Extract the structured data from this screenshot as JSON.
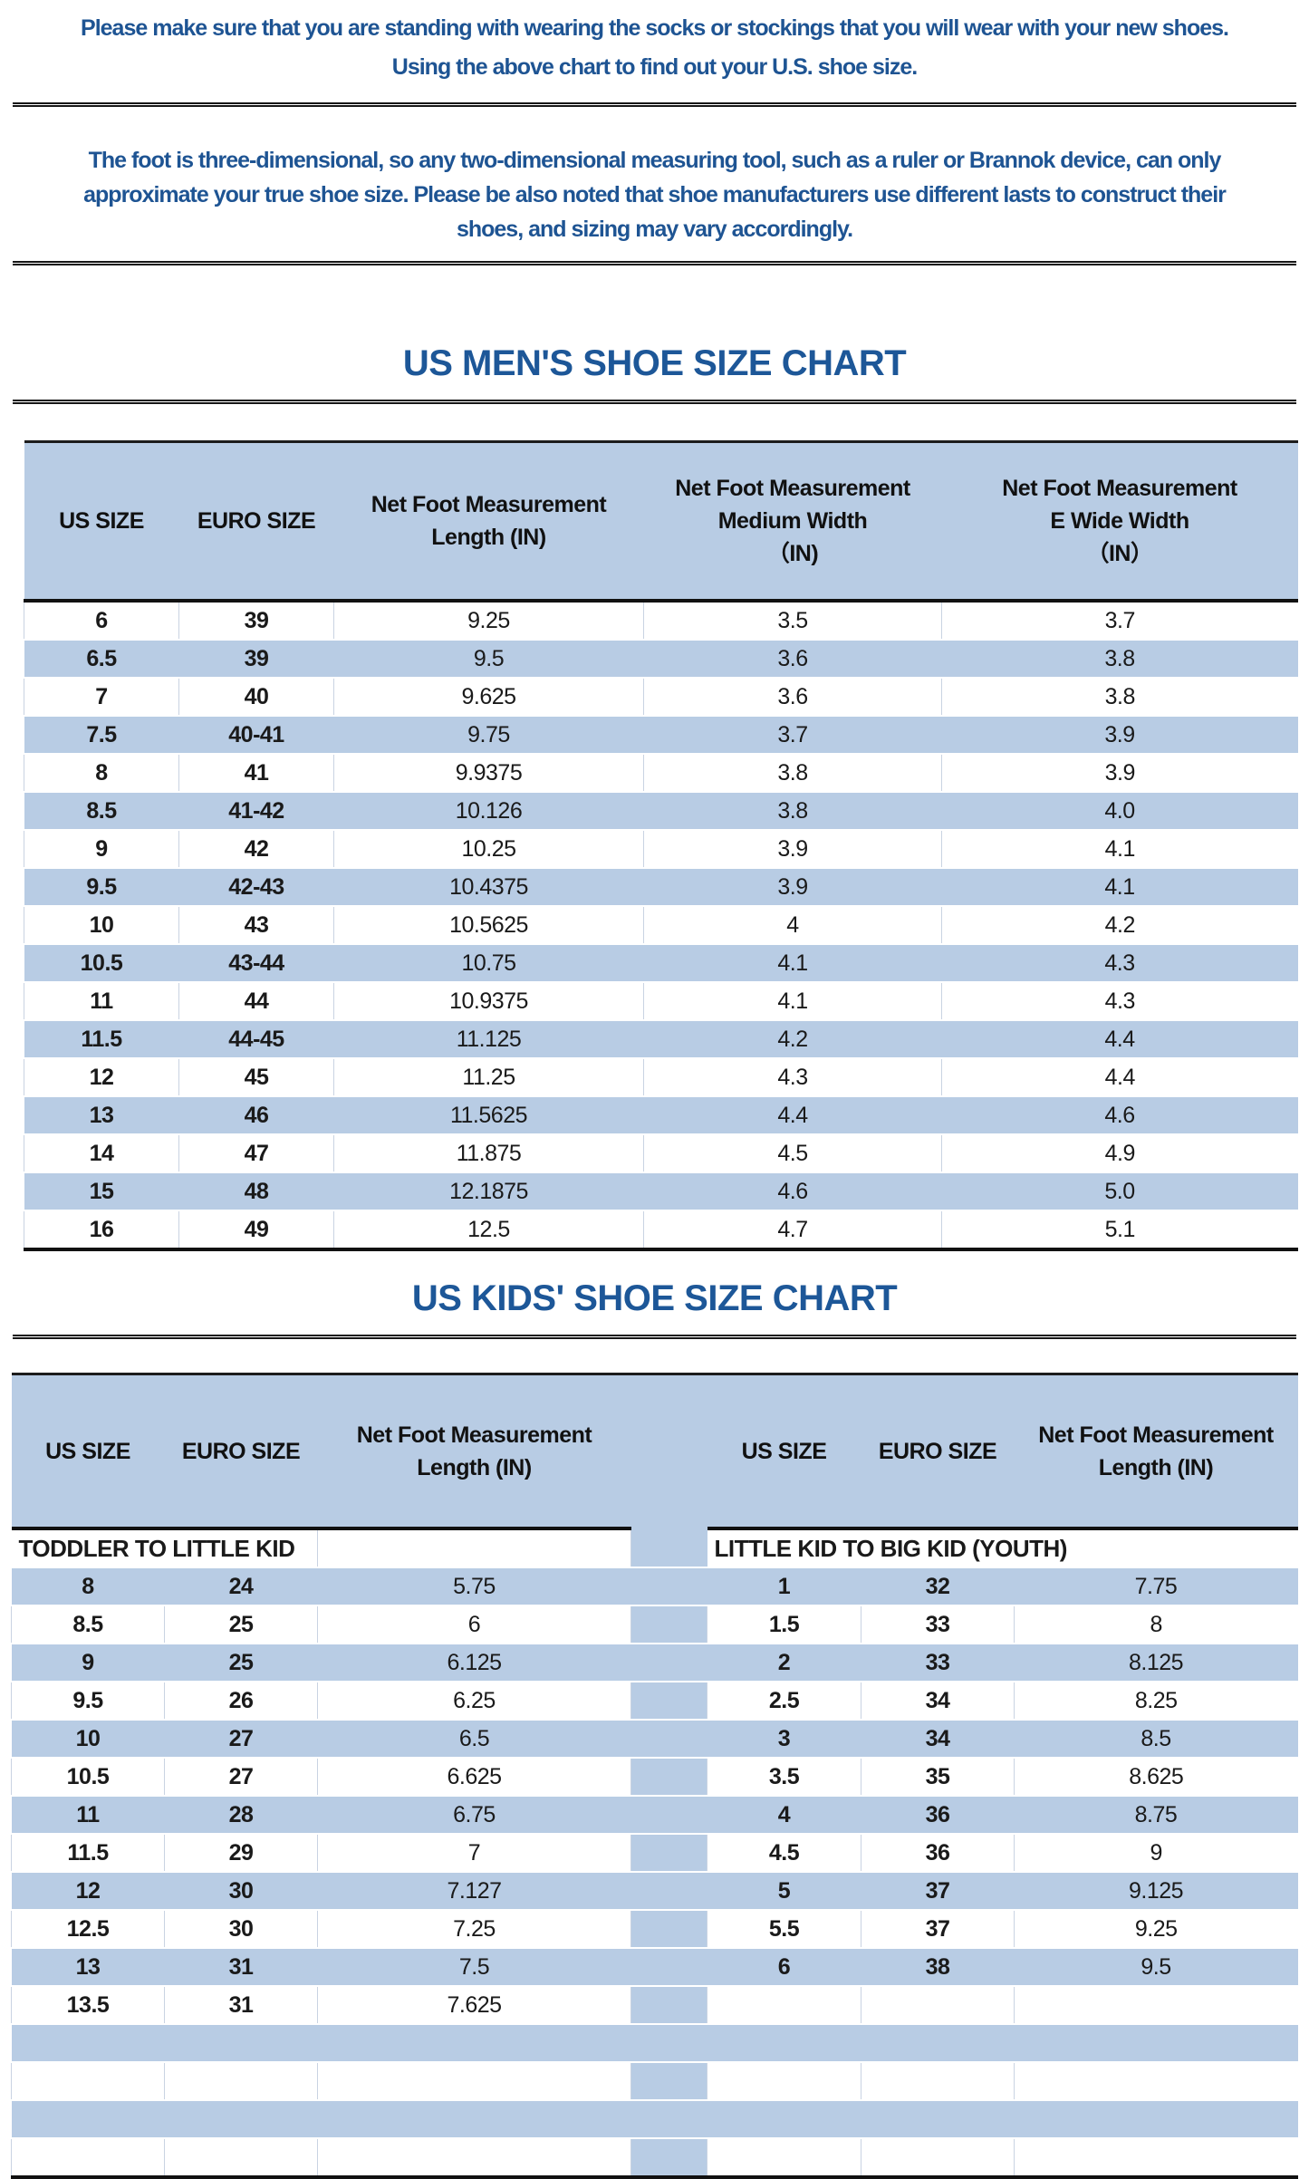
{
  "page": {
    "accent_blue": "#b8cce4",
    "text_blue": "#1e5493",
    "line_black": "#161616"
  },
  "intro": {
    "lines": [
      "Please make sure that you are standing with wearing the socks or stockings that you will wear with your new shoes.",
      "Using the above chart to find out your U.S. shoe size."
    ]
  },
  "note": {
    "lines": [
      "The foot is three-dimensional, so any two-dimensional measuring tool, such as a ruler or Brannok device, can only",
      "approximate your true shoe size. Please be also noted that shoe manufacturers use different lasts to construct their",
      "shoes, and sizing may vary accordingly."
    ]
  },
  "mens": {
    "title": "US MEN'S SHOE SIZE CHART",
    "headers": {
      "us": "US SIZE",
      "euro": "EURO SIZE",
      "length": [
        "Net Foot Measurement",
        "Length (IN)"
      ],
      "medium": [
        "Net Foot Measurement",
        "Medium Width",
        "（IN)"
      ],
      "ewide": [
        "Net Foot Measurement",
        "E Wide Width",
        "（IN）"
      ]
    },
    "rows": [
      [
        "6",
        "39",
        "9.25",
        "3.5",
        "3.7"
      ],
      [
        "6.5",
        "39",
        "9.5",
        "3.6",
        "3.8"
      ],
      [
        "7",
        "40",
        "9.625",
        "3.6",
        "3.8"
      ],
      [
        "7.5",
        "40-41",
        "9.75",
        "3.7",
        "3.9"
      ],
      [
        "8",
        "41",
        "9.9375",
        "3.8",
        "3.9"
      ],
      [
        "8.5",
        "41-42",
        "10.126",
        "3.8",
        "4.0"
      ],
      [
        "9",
        "42",
        "10.25",
        "3.9",
        "4.1"
      ],
      [
        "9.5",
        "42-43",
        "10.4375",
        "3.9",
        "4.1"
      ],
      [
        "10",
        "43",
        "10.5625",
        "4",
        "4.2"
      ],
      [
        "10.5",
        "43-44",
        "10.75",
        "4.1",
        "4.3"
      ],
      [
        "11",
        "44",
        "10.9375",
        "4.1",
        "4.3"
      ],
      [
        "11.5",
        "44-45",
        "11.125",
        "4.2",
        "4.4"
      ],
      [
        "12",
        "45",
        "11.25",
        "4.3",
        "4.4"
      ],
      [
        "13",
        "46",
        "11.5625",
        "4.4",
        "4.6"
      ],
      [
        "14",
        "47",
        "11.875",
        "4.5",
        "4.9"
      ],
      [
        "15",
        "48",
        "12.1875",
        "4.6",
        "5.0"
      ],
      [
        "16",
        "49",
        "12.5",
        "4.7",
        "5.1"
      ]
    ]
  },
  "kids": {
    "title": "US KIDS' SHOE SIZE CHART",
    "headers": {
      "us": "US SIZE",
      "euro": "EURO SIZE",
      "length": [
        "Net Foot Measurement",
        "Length (IN)"
      ]
    },
    "left_group_label": "TODDLER TO LITTLE KID",
    "right_group_label": "LITTLE KID TO BIG KID (YOUTH)",
    "rows": [
      [
        "8",
        "24",
        "5.75",
        "",
        "1",
        "32",
        "7.75"
      ],
      [
        "8.5",
        "25",
        "6",
        "",
        "1.5",
        "33",
        "8"
      ],
      [
        "9",
        "25",
        "6.125",
        "",
        "2",
        "33",
        "8.125"
      ],
      [
        "9.5",
        "26",
        "6.25",
        "",
        "2.5",
        "34",
        "8.25"
      ],
      [
        "10",
        "27",
        "6.5",
        "",
        "3",
        "34",
        "8.5"
      ],
      [
        "10.5",
        "27",
        "6.625",
        "",
        "3.5",
        "35",
        "8.625"
      ],
      [
        "11",
        "28",
        "6.75",
        "",
        "4",
        "36",
        "8.75"
      ],
      [
        "11.5",
        "29",
        "7",
        "",
        "4.5",
        "36",
        "9"
      ],
      [
        "12",
        "30",
        "7.127",
        "",
        "5",
        "37",
        "9.125"
      ],
      [
        "12.5",
        "30",
        "7.25",
        "",
        "5.5",
        "37",
        "9.25"
      ],
      [
        "13",
        "31",
        "7.5",
        "",
        "6",
        "38",
        "9.5"
      ],
      [
        "13.5",
        "31",
        "7.625",
        "",
        "",
        "",
        ""
      ],
      [
        "",
        "",
        "",
        "",
        "",
        "",
        ""
      ],
      [
        "",
        "",
        "",
        "",
        "",
        "",
        ""
      ],
      [
        "",
        "",
        "",
        "",
        "",
        "",
        ""
      ],
      [
        "",
        "",
        "",
        "",
        "",
        "",
        ""
      ]
    ]
  }
}
